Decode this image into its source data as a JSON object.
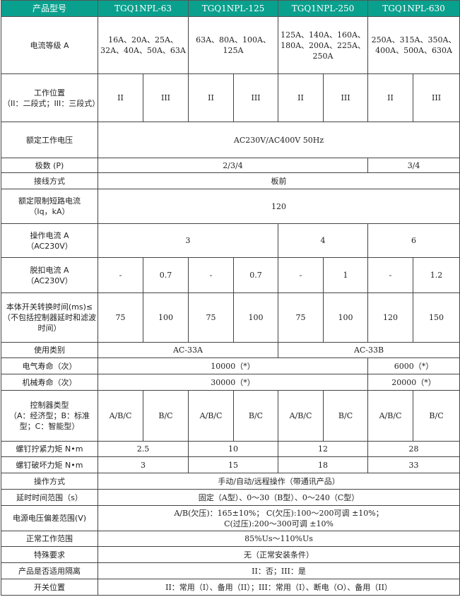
{
  "header": {
    "label": "产品型号",
    "models": [
      "TGQ1NPL-63",
      "TGQ1NPL-125",
      "TGQ1NPL-250",
      "TGQ1NPL-630"
    ]
  },
  "header_color": "#0aa08e",
  "rows": [
    {
      "label": "电流等级 A",
      "cells": [
        {
          "t": "16A、20A、25A、\n32A、40A、50A、63A",
          "s": 2
        },
        {
          "t": "63A、80A、100A、\n125A",
          "s": 2
        },
        {
          "t": "125A、140A、160A、\n180A、200A、225A、\n250A",
          "s": 2
        },
        {
          "t": "250A、315A、350A、\n400A、500A、630A",
          "s": 2
        }
      ]
    },
    {
      "label": "工作位置\n（II：二段式；III：三段式）",
      "cells": [
        {
          "t": "II",
          "s": 1
        },
        {
          "t": "III",
          "s": 1
        },
        {
          "t": "II",
          "s": 1
        },
        {
          "t": "III",
          "s": 1
        },
        {
          "t": "II",
          "s": 1
        },
        {
          "t": "III",
          "s": 1
        },
        {
          "t": "II",
          "s": 1
        },
        {
          "t": "III",
          "s": 1
        }
      ]
    },
    {
      "label": "额定工作电压",
      "cells": [
        {
          "t": "AC230V/AC400V 50Hz",
          "s": 8
        }
      ]
    },
    {
      "label": "极数 (P)",
      "cells": [
        {
          "t": "2/3/4",
          "s": 6
        },
        {
          "t": "3/4",
          "s": 2
        }
      ]
    },
    {
      "label": "接线方式",
      "cells": [
        {
          "t": "板前",
          "s": 8
        }
      ]
    },
    {
      "label": "额定限制短路电流\n（Iq，kA）",
      "cells": [
        {
          "t": "120",
          "s": 8
        }
      ]
    },
    {
      "label": "操作电流 A\n（AC230V）",
      "cells": [
        {
          "t": "3",
          "s": 4
        },
        {
          "t": "4",
          "s": 2
        },
        {
          "t": "6",
          "s": 2
        }
      ]
    },
    {
      "label": "脱扣电流 A\n（AC230V）",
      "cells": [
        {
          "t": "-",
          "s": 1
        },
        {
          "t": "0.7",
          "s": 1
        },
        {
          "t": "-",
          "s": 1
        },
        {
          "t": "0.7",
          "s": 1
        },
        {
          "t": "-",
          "s": 1
        },
        {
          "t": "1",
          "s": 1
        },
        {
          "t": "-",
          "s": 1
        },
        {
          "t": "1.2",
          "s": 1
        }
      ]
    },
    {
      "label": "本体开关转换时间(ms)≤（不包括控制器延时和滤波时间）",
      "cells": [
        {
          "t": "75",
          "s": 1
        },
        {
          "t": "100",
          "s": 1
        },
        {
          "t": "75",
          "s": 1
        },
        {
          "t": "100",
          "s": 1
        },
        {
          "t": "75",
          "s": 1
        },
        {
          "t": "100",
          "s": 1
        },
        {
          "t": "120",
          "s": 1
        },
        {
          "t": "150",
          "s": 1
        }
      ]
    },
    {
      "label": "使用类别",
      "cells": [
        {
          "t": "AC-33A",
          "s": 4
        },
        {
          "t": "AC-33B",
          "s": 4
        }
      ]
    },
    {
      "label": "电气寿命（次）",
      "cells": [
        {
          "t": "10000（*）",
          "s": 6
        },
        {
          "t": "6000（*）",
          "s": 2
        }
      ]
    },
    {
      "label": "机械寿命（次）",
      "cells": [
        {
          "t": "30000（*）",
          "s": 6
        },
        {
          "t": "20000（*）",
          "s": 2
        }
      ]
    },
    {
      "label": "控制器类型\n（A：经济型；B：标准型；C：智能型）",
      "cells": [
        {
          "t": "A/B/C",
          "s": 1
        },
        {
          "t": "B/C",
          "s": 1
        },
        {
          "t": "A/B/C",
          "s": 1
        },
        {
          "t": "B/C",
          "s": 1
        },
        {
          "t": "A/B/C",
          "s": 1
        },
        {
          "t": "B/C",
          "s": 1
        },
        {
          "t": "A/B/C",
          "s": 1
        },
        {
          "t": "B/C",
          "s": 1
        }
      ]
    },
    {
      "label": "螺钉拧紧力矩 N•m",
      "cells": [
        {
          "t": "2.5",
          "s": 2
        },
        {
          "t": "10",
          "s": 2
        },
        {
          "t": "12",
          "s": 2
        },
        {
          "t": "28",
          "s": 2
        }
      ]
    },
    {
      "label": "螺钉破坏力矩 N•m",
      "cells": [
        {
          "t": "3",
          "s": 2
        },
        {
          "t": "15",
          "s": 2
        },
        {
          "t": "18",
          "s": 2
        },
        {
          "t": "33",
          "s": 2
        }
      ]
    },
    {
      "label": "操作方式",
      "cells": [
        {
          "t": "手动/自动/远程操作（带通讯产品）",
          "s": 8
        }
      ]
    },
    {
      "label": "延时时间范围（s）",
      "cells": [
        {
          "t": "固定（A型）、0～30（B型）、0～240（C型）",
          "s": 8
        }
      ]
    },
    {
      "label": "电源电压偏差范围(V)",
      "cells": [
        {
          "t": "A/B(欠压)：165±10%； C(欠压):100～200可调 ±10%；\nC(过压):200～300可调 ±10%",
          "s": 8
        }
      ]
    },
    {
      "label": "正常工作范围",
      "cells": [
        {
          "t": "85%Us～110%Us",
          "s": 8
        }
      ]
    },
    {
      "label": "特殊要求",
      "cells": [
        {
          "t": "无（正常安装条件）",
          "s": 8
        }
      ]
    },
    {
      "label": "产品是否适用隔离",
      "cells": [
        {
          "t": "II：否；III：是",
          "s": 8
        }
      ]
    },
    {
      "label": "开关位置",
      "cells": [
        {
          "t": "II：常用（I）、备用（II）；III：常用（I）、断电（O）、备用（II）",
          "s": 8
        }
      ]
    }
  ]
}
